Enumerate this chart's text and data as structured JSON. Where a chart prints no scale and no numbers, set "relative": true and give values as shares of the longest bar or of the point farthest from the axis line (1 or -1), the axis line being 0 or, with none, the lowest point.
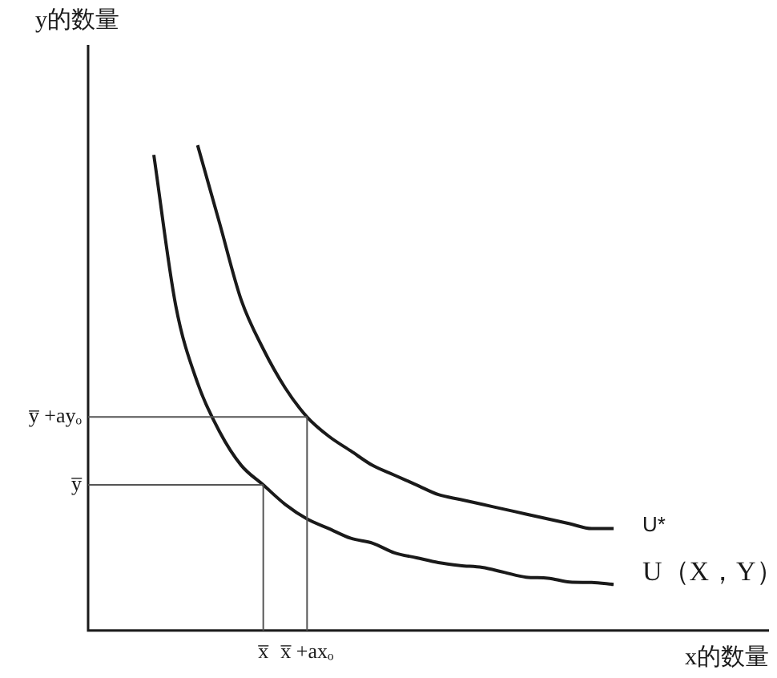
{
  "chart_data": {
    "type": "line",
    "relative": true,
    "xlabel": "x的数量",
    "ylabel": "y的数量",
    "categories": [
      null,
      null,
      null,
      null,
      null,
      null,
      null,
      null,
      "x̅",
      null,
      "x̅ +axₒ",
      null,
      null,
      null,
      null,
      null,
      null,
      null,
      null,
      null,
      null,
      null,
      null,
      null,
      null,
      null,
      null,
      null,
      null,
      null,
      null
    ],
    "series": [
      {
        "name": "U*",
        "color": "#1a1a1a",
        "values": [
          null,
          null,
          null,
          null,
          null,
          1.0,
          0.84,
          0.68,
          0.58,
          0.5,
          0.44,
          0.4,
          0.37,
          0.34,
          0.32,
          0.3,
          0.28,
          0.27,
          0.26,
          0.25,
          0.24,
          0.23,
          0.22,
          0.21,
          0.21,
          null,
          null,
          null,
          null,
          null,
          null
        ]
      },
      {
        "name": "U（X，Y）",
        "color": "#1a1a1a",
        "values": [
          null,
          null,
          null,
          0.98,
          0.67,
          0.51,
          0.41,
          0.34,
          0.3,
          0.26,
          0.23,
          0.21,
          0.19,
          0.18,
          0.16,
          0.15,
          0.14,
          0.134,
          0.13,
          0.12,
          0.11,
          0.108,
          0.1,
          0.099,
          0.095,
          null,
          null,
          null,
          null,
          null,
          null
        ]
      }
    ],
    "ref_lines": [
      {
        "axis": "y",
        "value": 0.3,
        "label": "y̅",
        "color": "#555555"
      },
      {
        "axis": "y",
        "value": 0.44,
        "label": "y̅ +ayₒ",
        "color": "#555555"
      },
      {
        "axis": "x",
        "value": "x̅",
        "color": "#555555"
      },
      {
        "axis": "x",
        "value": "x̅ +axₒ",
        "color": "#555555"
      }
    ],
    "grid": false,
    "legend": false,
    "marker": "none",
    "line_style": "solid"
  }
}
